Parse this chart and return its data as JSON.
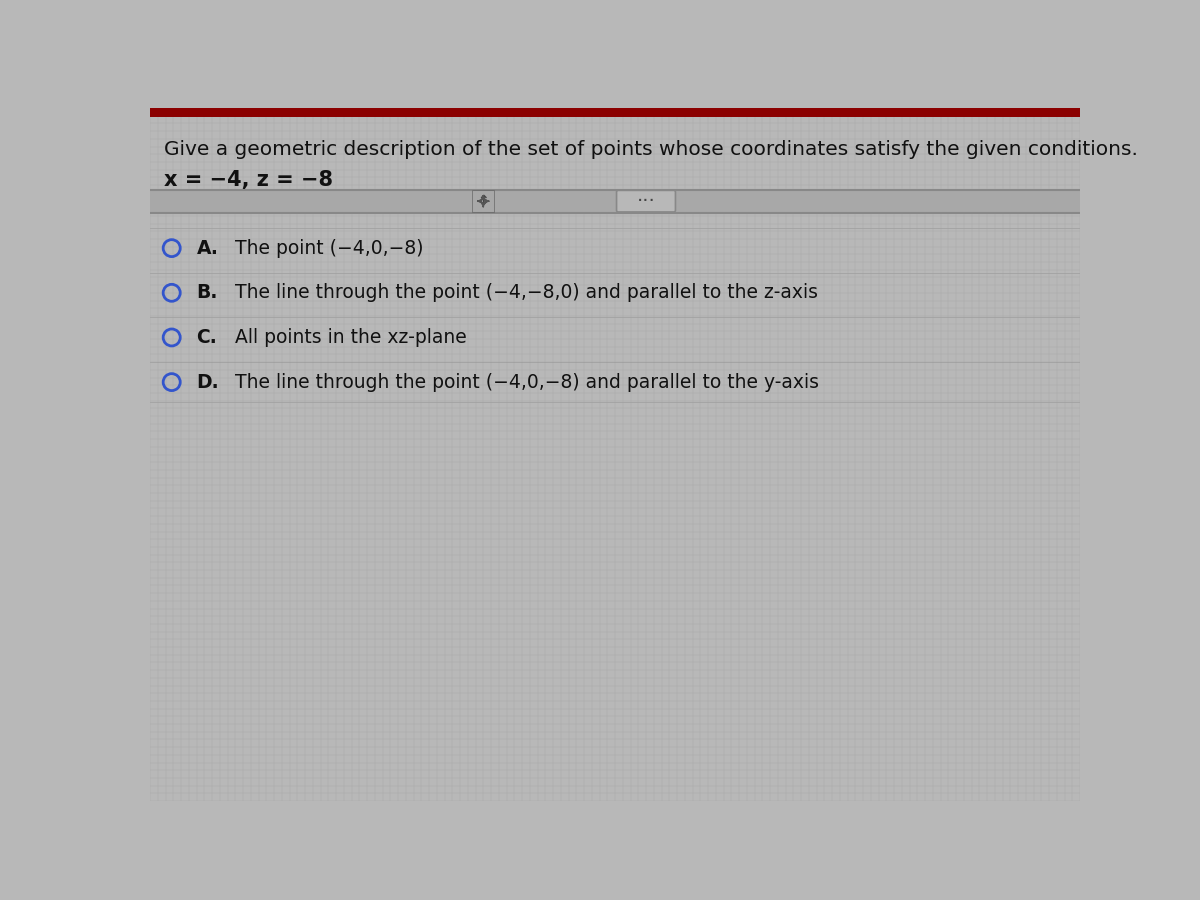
{
  "background_color": "#b8b8b8",
  "grid_color": "#a0a0a0",
  "top_bar_color": "#8b0000",
  "top_bar_height": 0.012,
  "title_text": "Give a geometric description of the set of points whose coordinates satisfy the given conditions.",
  "condition_text": "x = −4, z = −8",
  "options": [
    {
      "label": "A.",
      "text": "The point (−4,0,−8)"
    },
    {
      "label": "B.",
      "text": "The line through the point (−4,−8,0) and parallel to the z-axis"
    },
    {
      "label": "C.",
      "text": "All points in the xz-plane"
    },
    {
      "label": "D.",
      "text": "The line through the point (−4,0,−8) and parallel to the y-axis"
    }
  ],
  "circle_color": "#3355cc",
  "text_color": "#111111",
  "title_fontsize": 14.5,
  "option_fontsize": 13.5,
  "condition_fontsize": 15,
  "separator_color": "#888888",
  "option_rows_color": "#aaaaaa"
}
